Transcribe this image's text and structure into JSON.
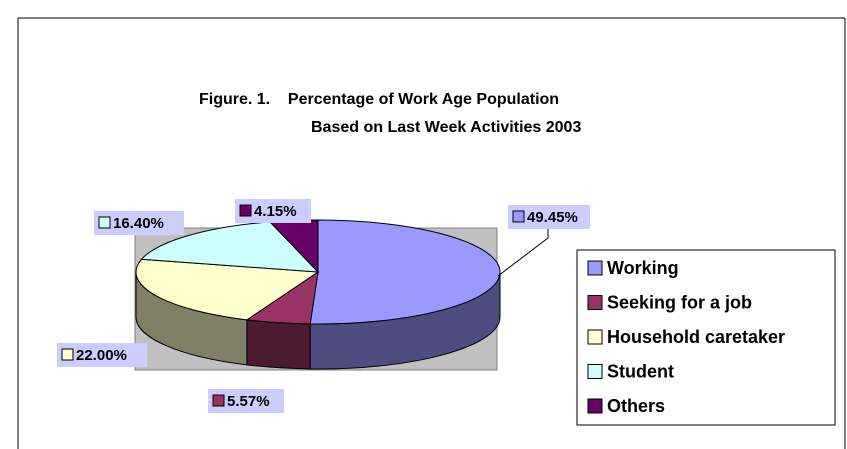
{
  "chart_data": {
    "type": "pie3d",
    "title_lines": [
      "Figure. 1.    Percentage of Work Age Population",
      "Based on Last Week Activities 2003"
    ],
    "categories": [
      "Working",
      "Seeking for a job",
      "Household caretaker",
      "Student",
      "Others"
    ],
    "values": [
      49.45,
      5.57,
      22.0,
      16.4,
      4.15
    ],
    "value_labels": [
      "49.45%",
      "5.57%",
      "22.00%",
      "16.40%",
      "4.15%"
    ],
    "colors": [
      "#9999ff",
      "#993366",
      "#ffffcc",
      "#ccffff",
      "#660066"
    ],
    "legend": "right"
  }
}
